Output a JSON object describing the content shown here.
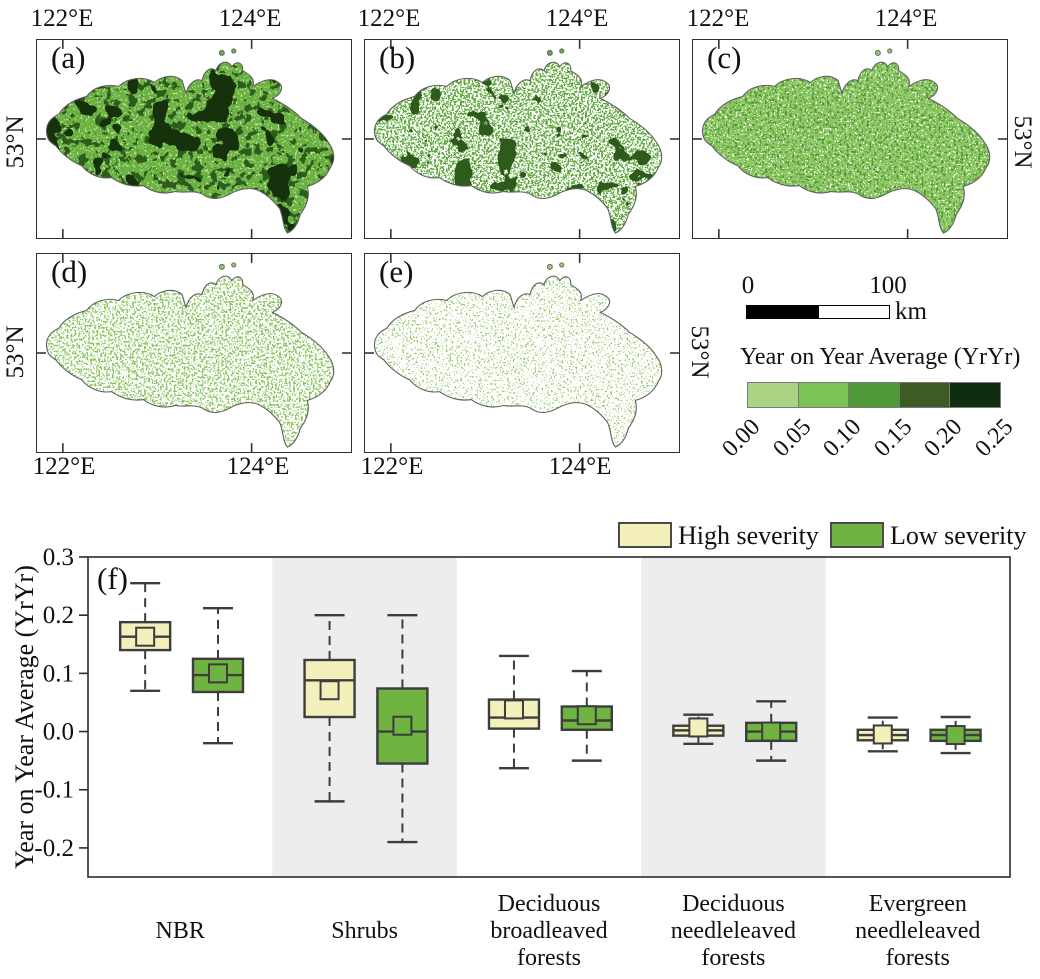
{
  "maps": {
    "panel_labels": [
      "(a)",
      "(b)",
      "(c)",
      "(d)",
      "(e)"
    ],
    "lon_tick_1": "122°E",
    "lon_tick_2": "124°E",
    "lat_tick": "53°N",
    "scalebar": {
      "zero": "0",
      "hundred": "100",
      "unit": "km"
    },
    "colorbar": {
      "title": "Year on Year Average (YrYr)",
      "ticks": [
        "0.00",
        "0.05",
        "0.10",
        "0.15",
        "0.20",
        "0.25"
      ],
      "colors": [
        "#abd384",
        "#7cc256",
        "#4f9a37",
        "#3c5c23",
        "#0f2e10"
      ]
    }
  },
  "chart_data": {
    "type": "boxplot",
    "panel_label": "(f)",
    "ylabel": "Year on Year Average (YrYr)",
    "ylim": [
      -0.25,
      0.3
    ],
    "yticks": [
      0.3,
      0.2,
      0.1,
      0.0,
      -0.1,
      -0.2
    ],
    "ytick_labels": [
      "0.3",
      "0.2",
      "0.1",
      "0.0",
      "-0.1",
      "-0.2"
    ],
    "categories": [
      "NBR",
      "Shrubs",
      "Deciduous broadleaved forests",
      "Deciduous needleleaved forests",
      "Evergreen needleleaved forests"
    ],
    "category_label_lines": [
      [
        "NBR"
      ],
      [
        "Shrubs"
      ],
      [
        "Deciduous",
        "broadleaved",
        "forests"
      ],
      [
        "Deciduous",
        "needleleaved",
        "forests"
      ],
      [
        "Evergreen",
        "needleleaved",
        "forests"
      ]
    ],
    "shaded_group_indices": [
      1,
      3
    ],
    "legend_position": "top-right",
    "series": [
      {
        "name": "High severity",
        "fill": "#f3f0bc",
        "boxes": [
          {
            "whisker_low": 0.07,
            "q1": 0.14,
            "median": 0.163,
            "mean": 0.163,
            "q3": 0.188,
            "whisker_high": 0.255
          },
          {
            "whisker_low": -0.12,
            "q1": 0.025,
            "median": 0.088,
            "mean": 0.071,
            "q3": 0.123,
            "whisker_high": 0.2
          },
          {
            "whisker_low": -0.063,
            "q1": 0.005,
            "median": 0.024,
            "mean": 0.038,
            "q3": 0.055,
            "whisker_high": 0.13
          },
          {
            "whisker_low": -0.021,
            "q1": -0.007,
            "median": 0.002,
            "mean": 0.007,
            "q3": 0.01,
            "whisker_high": 0.029
          },
          {
            "whisker_low": -0.034,
            "q1": -0.015,
            "median": -0.006,
            "mean": -0.005,
            "q3": 0.003,
            "whisker_high": 0.024
          }
        ]
      },
      {
        "name": "Low severity",
        "fill": "#6fb440",
        "boxes": [
          {
            "whisker_low": -0.02,
            "q1": 0.068,
            "median": 0.097,
            "mean": 0.1,
            "q3": 0.125,
            "whisker_high": 0.212
          },
          {
            "whisker_low": -0.19,
            "q1": -0.055,
            "median": 0.0,
            "mean": 0.01,
            "q3": 0.074,
            "whisker_high": 0.2
          },
          {
            "whisker_low": -0.05,
            "q1": 0.003,
            "median": 0.019,
            "mean": 0.028,
            "q3": 0.043,
            "whisker_high": 0.104
          },
          {
            "whisker_low": -0.05,
            "q1": -0.016,
            "median": 0.0,
            "mean": 0.0,
            "q3": 0.015,
            "whisker_high": 0.052
          },
          {
            "whisker_low": -0.037,
            "q1": -0.016,
            "median": -0.006,
            "mean": -0.006,
            "q3": 0.003,
            "whisker_high": 0.025
          }
        ]
      }
    ]
  }
}
